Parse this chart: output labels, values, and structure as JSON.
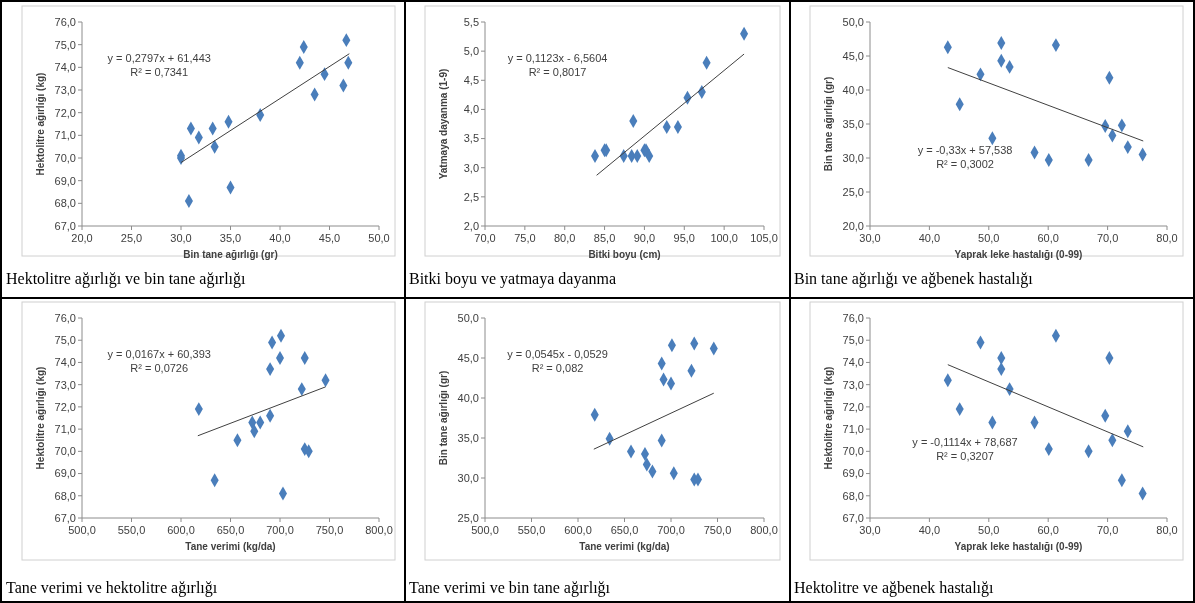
{
  "chart_data": [
    {
      "type": "scatter",
      "title": "Hektolitre ağırlığı ve bin tane ağırlığı",
      "xlabel": "Bin tane ağırlığı  (gr)",
      "ylabel": "Hektolitre ağırlığı  (kg)",
      "annotations": [
        "y = 0,2797x  + 61,443",
        "R² = 0,7341"
      ],
      "marker": "diamond",
      "xlim": [
        20,
        50
      ],
      "xticks": [
        {
          "value": 20,
          "label": "20,0"
        },
        {
          "value": 25,
          "label": "25,0"
        },
        {
          "value": 30,
          "label": "30,0"
        },
        {
          "value": 35,
          "label": "35,0"
        },
        {
          "value": 40,
          "label": "40,0"
        },
        {
          "value": 45,
          "label": "45,0"
        },
        {
          "value": 50,
          "label": "50,0"
        }
      ],
      "ylim": [
        67,
        76
      ],
      "yticks": [
        {
          "value": 67,
          "label": "67,0"
        },
        {
          "value": 68,
          "label": "68,0"
        },
        {
          "value": 69,
          "label": "69,0"
        },
        {
          "value": 70,
          "label": "70,0"
        },
        {
          "value": 71,
          "label": "71,0"
        },
        {
          "value": 72,
          "label": "72,0"
        },
        {
          "value": 73,
          "label": "73,0"
        },
        {
          "value": 74,
          "label": "74,0"
        },
        {
          "value": 75,
          "label": "75,0"
        },
        {
          "value": 76,
          "label": "76,0"
        }
      ],
      "series": [
        {
          "type": "scatter",
          "color": "#4a7ebb",
          "x": [
            30.0,
            30.0,
            31.0,
            31.8,
            33.2,
            33.4,
            34.8,
            35.0,
            30.8,
            38.0,
            42.0,
            42.4,
            43.5,
            44.5,
            46.4,
            46.7,
            46.9
          ],
          "values": [
            70.1,
            70.0,
            71.3,
            70.9,
            71.3,
            70.5,
            71.6,
            68.7,
            68.1,
            71.9,
            74.2,
            74.9,
            72.8,
            73.7,
            73.2,
            75.2,
            74.2
          ]
        },
        {
          "type": "line",
          "color": "#404040",
          "marker": "none",
          "x": [
            30.0,
            47.0
          ],
          "values": [
            69.8,
            74.6
          ]
        }
      ]
    },
    {
      "type": "scatter",
      "title": "Bitki boyu ve yatmaya dayanma",
      "xlabel": "Bitki boyu (cm)",
      "ylabel": "Yatmaya dayanma  (1-9)",
      "annotations": [
        "y = 0,1123x - 6,5604",
        "R² = 0,8017"
      ],
      "marker": "diamond",
      "xlim": [
        70,
        105
      ],
      "xticks": [
        {
          "value": 70,
          "label": "70,0"
        },
        {
          "value": 75,
          "label": "75,0"
        },
        {
          "value": 80,
          "label": "80,0"
        },
        {
          "value": 85,
          "label": "85,0"
        },
        {
          "value": 90,
          "label": "90,0"
        },
        {
          "value": 95,
          "label": "95,0"
        },
        {
          "value": 100,
          "label": "100,0"
        },
        {
          "value": 105,
          "label": "105,0"
        }
      ],
      "ylim": [
        2,
        5.5
      ],
      "yticks": [
        {
          "value": 2,
          "label": "2,0"
        },
        {
          "value": 2.5,
          "label": "2,5"
        },
        {
          "value": 3,
          "label": "3,0"
        },
        {
          "value": 3.5,
          "label": "3,5"
        },
        {
          "value": 4,
          "label": "4,0"
        },
        {
          "value": 4.5,
          "label": "4,5"
        },
        {
          "value": 5,
          "label": "5,0"
        },
        {
          "value": 5.5,
          "label": "5,5"
        }
      ],
      "series": [
        {
          "type": "scatter",
          "color": "#4a7ebb",
          "x": [
            83.8,
            85.0,
            85.2,
            87.4,
            88.4,
            88.6,
            89.1,
            90.0,
            90.2,
            90.6,
            92.8,
            94.2,
            95.4,
            97.2,
            97.8,
            102.5
          ],
          "values": [
            3.2,
            3.3,
            3.3,
            3.2,
            3.2,
            3.8,
            3.2,
            3.3,
            3.3,
            3.2,
            3.7,
            3.7,
            4.2,
            4.3,
            4.8,
            5.3
          ]
        },
        {
          "type": "line",
          "color": "#404040",
          "marker": "none",
          "x": [
            84.0,
            102.5
          ],
          "values": [
            2.87,
            4.95
          ]
        }
      ]
    },
    {
      "type": "scatter",
      "title": "Bin tane ağırlığı ve ağbenek hastalığı",
      "xlabel": "Yaprak leke hastalığı  (0-99)",
      "ylabel": "Bin tane ağırlığı  (gr)",
      "annotations": [
        "y = -0,33x + 57,538",
        "R² = 0,3002"
      ],
      "marker": "diamond",
      "xlim": [
        30,
        80
      ],
      "xticks": [
        {
          "value": 30,
          "label": "30,0"
        },
        {
          "value": 40,
          "label": "40,0"
        },
        {
          "value": 50,
          "label": "50,0"
        },
        {
          "value": 60,
          "label": "60,0"
        },
        {
          "value": 70,
          "label": "70,0"
        },
        {
          "value": 80,
          "label": "80,0"
        }
      ],
      "ylim": [
        20,
        50
      ],
      "yticks": [
        {
          "value": 20,
          "label": "20,0"
        },
        {
          "value": 25,
          "label": "25,0"
        },
        {
          "value": 30,
          "label": "30,0"
        },
        {
          "value": 35,
          "label": "35,0"
        },
        {
          "value": 40,
          "label": "40,0"
        },
        {
          "value": 45,
          "label": "45,0"
        },
        {
          "value": 50,
          "label": "50,0"
        }
      ],
      "series": [
        {
          "type": "scatter",
          "color": "#4a7ebb",
          "x": [
            43.1,
            45.1,
            48.6,
            50.6,
            52.1,
            52.1,
            53.5,
            57.7,
            60.1,
            61.3,
            66.8,
            69.6,
            70.3,
            70.8,
            72.4,
            73.4,
            75.9
          ],
          "values": [
            46.3,
            37.9,
            42.3,
            32.9,
            46.9,
            44.3,
            43.4,
            30.8,
            29.7,
            46.6,
            29.7,
            34.7,
            41.8,
            33.3,
            34.8,
            31.6,
            30.5
          ]
        },
        {
          "type": "line",
          "color": "#404040",
          "marker": "none",
          "x": [
            43.1,
            76.0
          ],
          "values": [
            43.3,
            32.5
          ]
        }
      ]
    },
    {
      "type": "scatter",
      "title": "Tane verimi ve hektolitre ağırlığı",
      "xlabel": "Tane verimi (kg/da)",
      "ylabel": "Hektolitre ağırlığı  (kg)",
      "annotations": [
        "y = 0,0167x + 60,393",
        "R² = 0,0726"
      ],
      "marker": "diamond",
      "xlim": [
        500,
        800
      ],
      "xticks": [
        {
          "value": 500,
          "label": "500,0"
        },
        {
          "value": 550,
          "label": "550,0"
        },
        {
          "value": 600,
          "label": "600,0"
        },
        {
          "value": 650,
          "label": "650,0"
        },
        {
          "value": 700,
          "label": "700,0"
        },
        {
          "value": 750,
          "label": "750,0"
        },
        {
          "value": 800,
          "label": "800,0"
        }
      ],
      "ylim": [
        67,
        76
      ],
      "yticks": [
        {
          "value": 67,
          "label": "67,0"
        },
        {
          "value": 68,
          "label": "68,0"
        },
        {
          "value": 69,
          "label": "69,0"
        },
        {
          "value": 70,
          "label": "70,0"
        },
        {
          "value": 71,
          "label": "71,0"
        },
        {
          "value": 72,
          "label": "72,0"
        },
        {
          "value": 73,
          "label": "73,0"
        },
        {
          "value": 74,
          "label": "74,0"
        },
        {
          "value": 75,
          "label": "75,0"
        },
        {
          "value": 76,
          "label": "76,0"
        }
      ],
      "series": [
        {
          "type": "scatter",
          "color": "#4a7ebb",
          "x": [
            618,
            634,
            657,
            672,
            674,
            680,
            690,
            690,
            692,
            700,
            701,
            722,
            725,
            725,
            729,
            746,
            703
          ],
          "values": [
            71.9,
            68.7,
            70.5,
            71.3,
            70.9,
            71.3,
            71.6,
            73.7,
            74.9,
            74.2,
            75.2,
            72.8,
            74.2,
            70.1,
            70.0,
            73.2,
            68.1
          ]
        },
        {
          "type": "line",
          "color": "#404040",
          "marker": "none",
          "x": [
            617,
            746
          ],
          "values": [
            70.7,
            72.9
          ]
        }
      ]
    },
    {
      "type": "scatter",
      "title": "Tane verimi ve bin tane ağırlığı",
      "xlabel": "Tane verimi (kg/da)",
      "ylabel": "Bin tane ağırlığı  (gr)",
      "annotations": [
        "y = 0,0545x - 0,0529",
        "R² = 0,082"
      ],
      "marker": "diamond",
      "xlim": [
        500,
        800
      ],
      "xticks": [
        {
          "value": 500,
          "label": "500,0"
        },
        {
          "value": 550,
          "label": "550,0"
        },
        {
          "value": 600,
          "label": "600,0"
        },
        {
          "value": 650,
          "label": "650,0"
        },
        {
          "value": 700,
          "label": "700,0"
        },
        {
          "value": 750,
          "label": "750,0"
        },
        {
          "value": 800,
          "label": "800,0"
        }
      ],
      "ylim": [
        25,
        50
      ],
      "yticks": [
        {
          "value": 25,
          "label": "25,0"
        },
        {
          "value": 30,
          "label": "30,0"
        },
        {
          "value": 35,
          "label": "35,0"
        },
        {
          "value": 40,
          "label": "40,0"
        },
        {
          "value": 45,
          "label": "45,0"
        },
        {
          "value": 50,
          "label": "50,0"
        }
      ],
      "series": [
        {
          "type": "scatter",
          "color": "#4a7ebb",
          "x": [
            618,
            634,
            657,
            672,
            674,
            680,
            690,
            690,
            692,
            700,
            701,
            703,
            722,
            725,
            725,
            729,
            746
          ],
          "values": [
            37.9,
            34.9,
            33.3,
            33.0,
            31.7,
            30.8,
            44.3,
            34.7,
            42.3,
            41.8,
            46.6,
            30.6,
            43.4,
            46.8,
            29.8,
            29.8,
            46.2
          ]
        },
        {
          "type": "line",
          "color": "#404040",
          "marker": "none",
          "x": [
            617,
            746
          ],
          "values": [
            33.6,
            40.6
          ]
        }
      ]
    },
    {
      "type": "scatter",
      "title": "Hektolitre ve ağbenek hastalığı",
      "xlabel": "Yaprak leke hastalığı  (0-99)",
      "ylabel": "Hektolitre ağırlığı  (kg)",
      "annotations": [
        "y = -0,1114x  + 78,687",
        "R² = 0,3207"
      ],
      "marker": "diamond",
      "xlim": [
        30,
        80
      ],
      "xticks": [
        {
          "value": 30,
          "label": "30,0"
        },
        {
          "value": 40,
          "label": "40,0"
        },
        {
          "value": 50,
          "label": "50,0"
        },
        {
          "value": 60,
          "label": "60,0"
        },
        {
          "value": 70,
          "label": "70,0"
        },
        {
          "value": 80,
          "label": "80,0"
        }
      ],
      "ylim": [
        67,
        76
      ],
      "yticks": [
        {
          "value": 67,
          "label": "67,0"
        },
        {
          "value": 68,
          "label": "68,0"
        },
        {
          "value": 69,
          "label": "69,0"
        },
        {
          "value": 70,
          "label": "70,0"
        },
        {
          "value": 71,
          "label": "71,0"
        },
        {
          "value": 72,
          "label": "72,0"
        },
        {
          "value": 73,
          "label": "73,0"
        },
        {
          "value": 74,
          "label": "74,0"
        },
        {
          "value": 75,
          "label": "75,0"
        },
        {
          "value": 76,
          "label": "76,0"
        }
      ],
      "series": [
        {
          "type": "scatter",
          "color": "#4a7ebb",
          "x": [
            43.1,
            45.1,
            48.6,
            50.6,
            52.1,
            52.1,
            53.5,
            57.7,
            60.1,
            61.3,
            66.8,
            69.6,
            70.3,
            70.8,
            73.4,
            72.4,
            75.9
          ],
          "values": [
            73.2,
            71.9,
            74.9,
            71.3,
            74.2,
            73.7,
            72.8,
            71.3,
            70.1,
            75.2,
            70.0,
            71.6,
            74.2,
            70.5,
            70.9,
            68.7,
            68.1
          ]
        },
        {
          "type": "line",
          "color": "#404040",
          "marker": "none",
          "x": [
            43.1,
            76.0
          ],
          "values": [
            73.9,
            70.2
          ]
        }
      ]
    }
  ]
}
